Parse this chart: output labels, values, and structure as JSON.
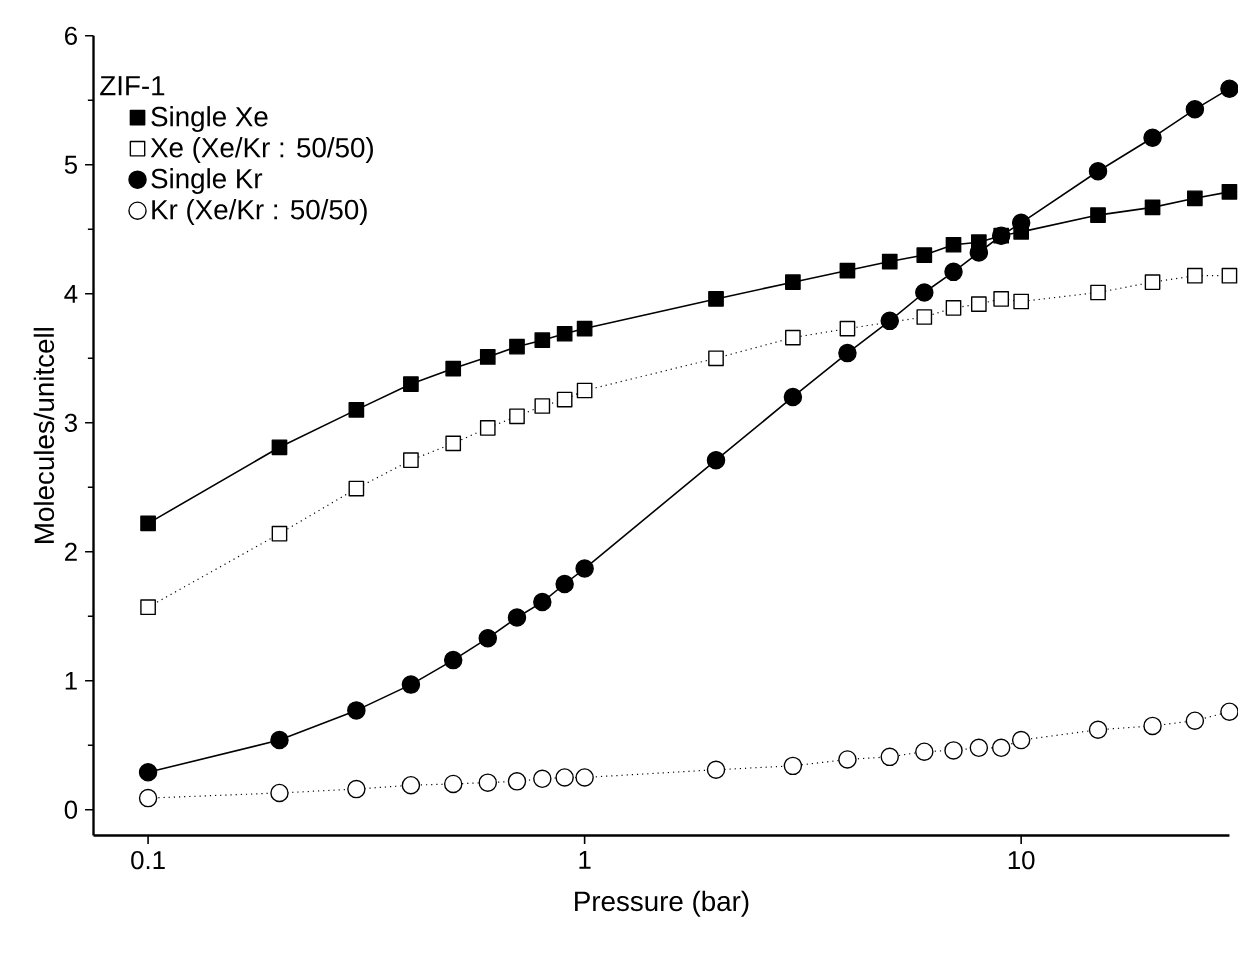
{
  "chart_data": {
    "type": "line",
    "xlabel": "Pressure (bar)",
    "ylabel": "Molecules/unitcell",
    "legend_title": "ZIF-1",
    "legend": "top left",
    "log": "x",
    "xlim": [
      0.075,
      30
    ],
    "ylim": [
      -0.2,
      6
    ],
    "xticks": [
      0.1,
      1,
      10
    ],
    "yticks": [
      0,
      1,
      2,
      3,
      4,
      5,
      6
    ],
    "x": [
      0.1,
      0.2,
      0.3,
      0.4,
      0.5,
      0.6,
      0.7,
      0.8,
      0.9,
      1,
      2,
      3,
      4,
      5,
      6,
      7,
      8,
      9,
      10,
      15,
      20,
      25,
      30
    ],
    "series": [
      {
        "name": "Single Xe",
        "color": "#000000",
        "marker": "square",
        "line_style": "solid",
        "values": [
          2.22,
          2.81,
          3.1,
          3.3,
          3.42,
          3.51,
          3.59,
          3.64,
          3.69,
          3.73,
          3.96,
          4.09,
          4.18,
          4.25,
          4.3,
          4.38,
          4.4,
          4.45,
          4.48,
          4.61,
          4.67,
          4.74,
          4.79
        ]
      },
      {
        "name": "Xe (Xe/Kr : 50/50)",
        "color": "#000000",
        "marker": "square",
        "line_style": "dotted",
        "values": [
          1.57,
          2.14,
          2.49,
          2.71,
          2.84,
          2.96,
          3.05,
          3.13,
          3.18,
          3.25,
          3.5,
          3.66,
          3.73,
          null,
          3.82,
          3.89,
          3.92,
          3.96,
          3.94,
          4.01,
          4.09,
          4.14,
          4.14
        ]
      },
      {
        "name": "Single Kr",
        "color": "#000000",
        "marker": "circle",
        "line_style": "solid",
        "values": [
          0.29,
          0.54,
          0.77,
          0.97,
          1.16,
          1.33,
          1.49,
          1.61,
          1.75,
          1.87,
          2.71,
          3.2,
          3.54,
          3.79,
          4.01,
          4.17,
          4.32,
          4.45,
          4.55,
          4.95,
          5.21,
          5.43,
          5.59
        ]
      },
      {
        "name": "Kr (Xe/Kr : 50/50)",
        "color": "#000000",
        "marker": "circle",
        "line_style": "dotted",
        "values": [
          0.09,
          0.13,
          0.16,
          0.19,
          0.2,
          0.21,
          0.22,
          0.24,
          0.25,
          0.25,
          0.31,
          0.34,
          0.39,
          0.41,
          0.45,
          0.46,
          0.48,
          0.48,
          0.54,
          0.62,
          0.65,
          0.69,
          0.76
        ]
      }
    ]
  }
}
